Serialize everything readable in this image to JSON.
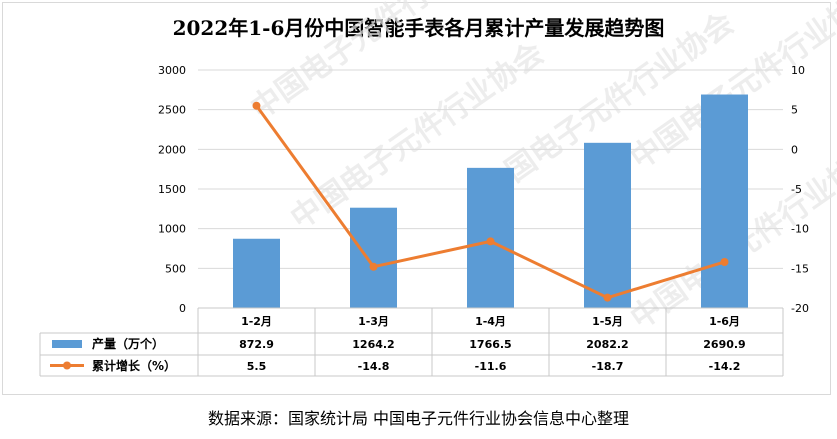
{
  "title": "2022年1-6月份中国智能手表各月累计产量发展趋势图",
  "footer": "数据来源：国家统计局    中国电子元件行业协会信息中心整理",
  "watermark": "中国电子元件行业协会",
  "chart_data": {
    "type": "bar",
    "categories": [
      "1-2月",
      "1-3月",
      "1-4月",
      "1-5月",
      "1-6月"
    ],
    "series": [
      {
        "name": "产量（万个）",
        "type": "bar",
        "axis": "left",
        "color": "#5b9bd5",
        "values": [
          872.9,
          1264.2,
          1766.5,
          2082.2,
          2690.9
        ],
        "labels": [
          "872.9",
          "1264.2",
          "1766.5",
          "2082.2",
          "2690.9"
        ]
      },
      {
        "name": "累计增长（%）",
        "type": "line",
        "axis": "right",
        "color": "#ed7d31",
        "values": [
          5.5,
          -14.8,
          -11.6,
          -18.7,
          -14.2
        ],
        "labels": [
          "5.5",
          "-14.8",
          "-11.6",
          "-18.7",
          "-14.2"
        ]
      }
    ],
    "y_left": {
      "min": 0,
      "max": 3000,
      "ticks": [
        0,
        500,
        1000,
        1500,
        2000,
        2500,
        3000
      ],
      "tick_labels": [
        "0",
        "500",
        "1000",
        "1500",
        "2000",
        "2500",
        "3000"
      ]
    },
    "y_right": {
      "min": -20,
      "max": 10,
      "ticks": [
        -20,
        -15,
        -10,
        -5,
        0,
        5,
        10
      ],
      "tick_labels": [
        "-20",
        "-15",
        "-10",
        "-5",
        "0",
        "5",
        "10"
      ]
    },
    "grid": true,
    "legend": "data-table"
  }
}
